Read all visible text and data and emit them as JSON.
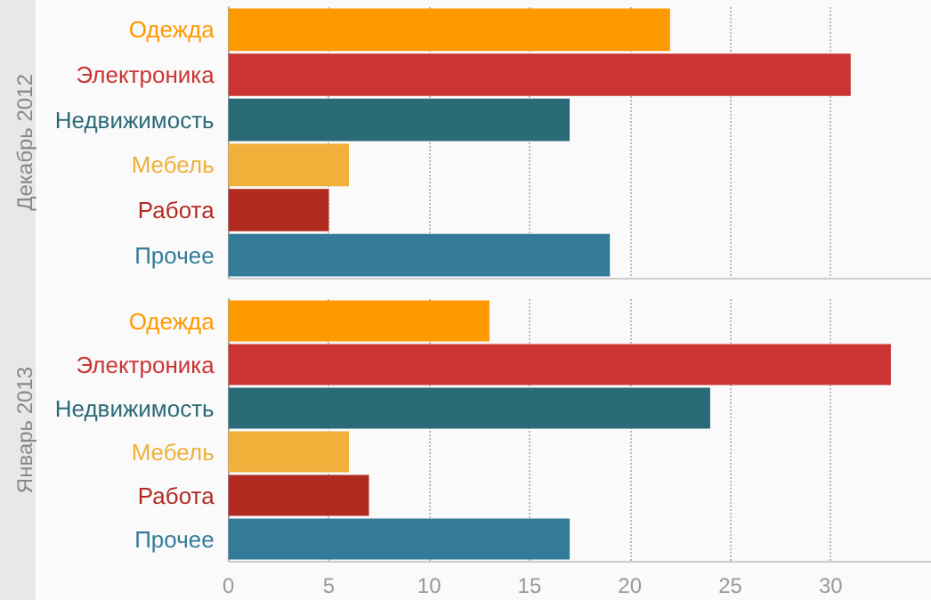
{
  "chart_data": [
    {
      "type": "bar",
      "orientation": "horizontal",
      "ylabel": "Декабрь 2012",
      "categories": [
        "Одежда",
        "Электроника",
        "Недвижимость",
        "Мебель",
        "Работа",
        "Прочее"
      ],
      "values": [
        22,
        31,
        17,
        6,
        5,
        19
      ],
      "colors": [
        "#ff9900",
        "#cc3333",
        "#2b6b78",
        "#f0b03a",
        "#b02a20",
        "#337b99"
      ],
      "xlim": [
        0,
        35
      ],
      "xticks": [
        0,
        5,
        10,
        15,
        20,
        25,
        30
      ],
      "grid": "x",
      "tick_labels": "y"
    },
    {
      "type": "bar",
      "orientation": "horizontal",
      "ylabel": "Январь 2013",
      "categories": [
        "Одежда",
        "Электроника",
        "Недвижимость",
        "Мебель",
        "Работа",
        "Прочее"
      ],
      "values": [
        13,
        33,
        24,
        6,
        7,
        17
      ],
      "colors": [
        "#ff9900",
        "#cc3333",
        "#2b6b78",
        "#f0b03a",
        "#b02a20",
        "#337b99"
      ],
      "xlim": [
        0,
        35
      ],
      "xticks": [
        0,
        5,
        10,
        15,
        20,
        25,
        30
      ],
      "grid": "x"
    }
  ]
}
